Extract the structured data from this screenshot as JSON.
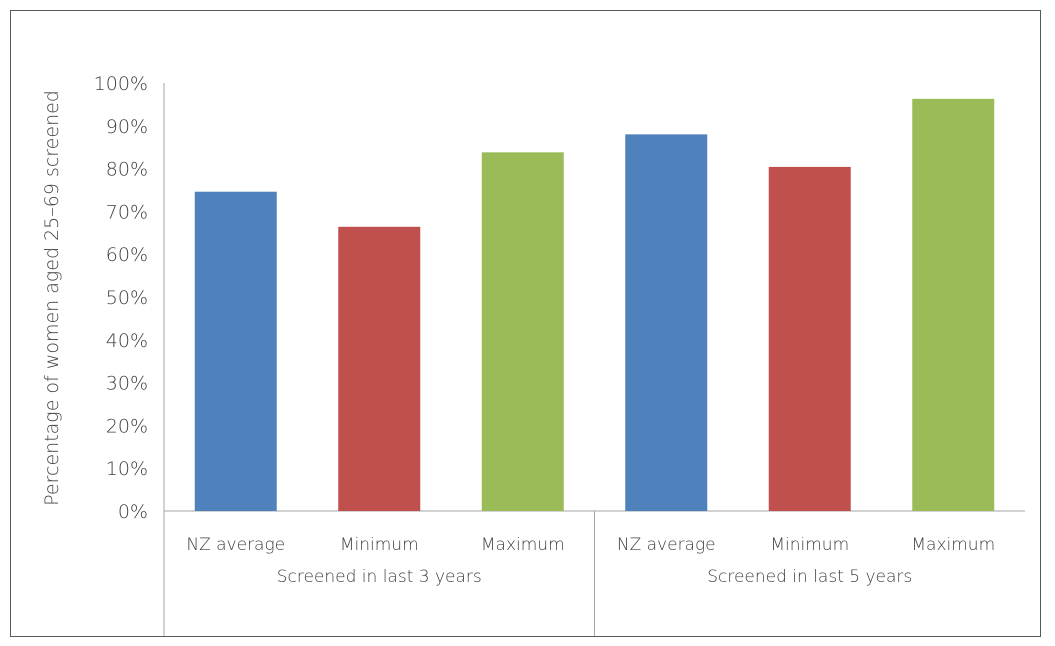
{
  "chart_data": {
    "type": "bar",
    "ylabel": "Percentage of women aged 25–69 screened",
    "ylim": [
      0,
      100
    ],
    "y_ticks": [
      "0%",
      "10%",
      "20%",
      "30%",
      "40%",
      "50%",
      "60%",
      "70%",
      "80%",
      "90%",
      "100%"
    ],
    "groups": [
      {
        "label": "Screened in last 3 years",
        "categories": [
          "NZ average",
          "Minimum",
          "Maximum"
        ],
        "values": [
          74.6,
          66.4,
          83.8
        ]
      },
      {
        "label": "Screened in last 5 years",
        "categories": [
          "NZ average",
          "Minimum",
          "Maximum"
        ],
        "values": [
          88.0,
          80.4,
          96.3
        ]
      }
    ],
    "colors": {
      "NZ average": "#4F81BD",
      "Minimum": "#C0504D",
      "Maximum": "#9BBB59"
    },
    "grid": false,
    "legend": "none"
  }
}
